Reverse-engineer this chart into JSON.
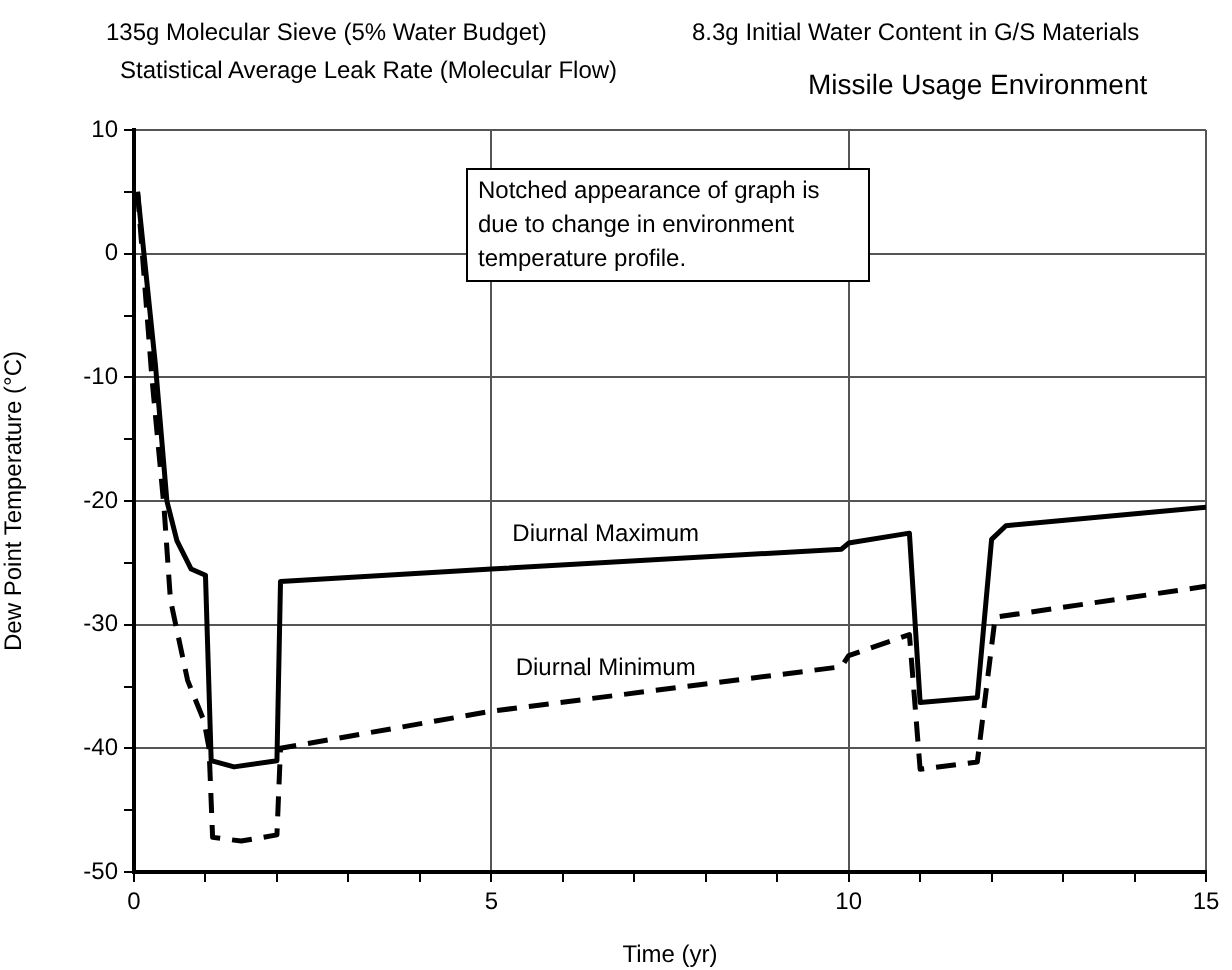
{
  "chart_data": {
    "type": "line",
    "title": "Missile Usage Environment",
    "subtitle": "135g Molecular Sieve (5% Water Budget)",
    "xlabel": "Time (yr)",
    "ylabel": "Dew Point Temperature (°C)",
    "annotations": [
      "8.3g Initial Water Content in G/S Materials",
      "Statistical Average Leak Rate (Molecular Flow)",
      "Notched appearance of graph is due to change in environment temperature profile."
    ],
    "series": [
      {
        "name": "Diurnal Maximum",
        "color": "#000000",
        "line_style": "solid",
        "x": [
          0.05,
          0.3,
          0.46,
          0.6,
          0.8,
          1.0,
          1.08,
          1.4,
          2.0,
          2.05,
          5,
          9.9,
          10.0,
          10.85,
          11.0,
          11.8,
          12.0,
          12.2,
          15
        ],
        "values": [
          5,
          -9,
          -20,
          -23.2,
          -25.5,
          -26,
          -41,
          -41.5,
          -41,
          -26.5,
          -25.5,
          -23.9,
          -23.4,
          -22.6,
          -36.3,
          -35.9,
          -23.1,
          -22,
          -20.5
        ]
      },
      {
        "name": "Diurnal Minimum",
        "color": "#000000",
        "line_style": "dashed",
        "x": [
          0.05,
          0.25,
          0.42,
          0.51,
          0.75,
          0.98,
          1.05,
          1.1,
          1.5,
          2.0,
          2.05,
          5,
          9.9,
          10.0,
          10.85,
          11.0,
          11.8,
          12.05,
          15
        ],
        "values": [
          5,
          -10,
          -20.5,
          -28,
          -34.5,
          -37.8,
          -40,
          -47.2,
          -47.5,
          -47,
          -40,
          -37,
          -33.4,
          -32.5,
          -30.8,
          -41.7,
          -41.1,
          -29.4,
          -26.9
        ]
      }
    ],
    "xlim": [
      0,
      15
    ],
    "xticks": [
      0,
      {
        "value": 1,
        "label": null
      },
      {
        "value": 2,
        "label": null
      },
      {
        "value": 3,
        "label": null
      },
      {
        "value": 4,
        "label": null
      },
      5,
      {
        "value": 6,
        "label": null
      },
      {
        "value": 7,
        "label": null
      },
      {
        "value": 8,
        "label": null
      },
      {
        "value": 9,
        "label": null
      },
      10,
      {
        "value": 11,
        "label": null
      },
      {
        "value": 12,
        "label": null
      },
      {
        "value": 13,
        "label": null
      },
      {
        "value": 14,
        "label": null
      },
      15
    ],
    "ylim": [
      -50,
      10
    ],
    "yticks": [
      -50,
      {
        "value": -45,
        "label": null
      },
      -40,
      {
        "value": -35,
        "label": null
      },
      -30,
      {
        "value": -25,
        "label": null
      },
      -20,
      {
        "value": -15,
        "label": null
      },
      -10,
      {
        "value": -5,
        "label": null
      },
      0,
      {
        "value": 5,
        "label": null
      },
      10
    ],
    "grid": true,
    "legend": false,
    "marker": "none"
  }
}
